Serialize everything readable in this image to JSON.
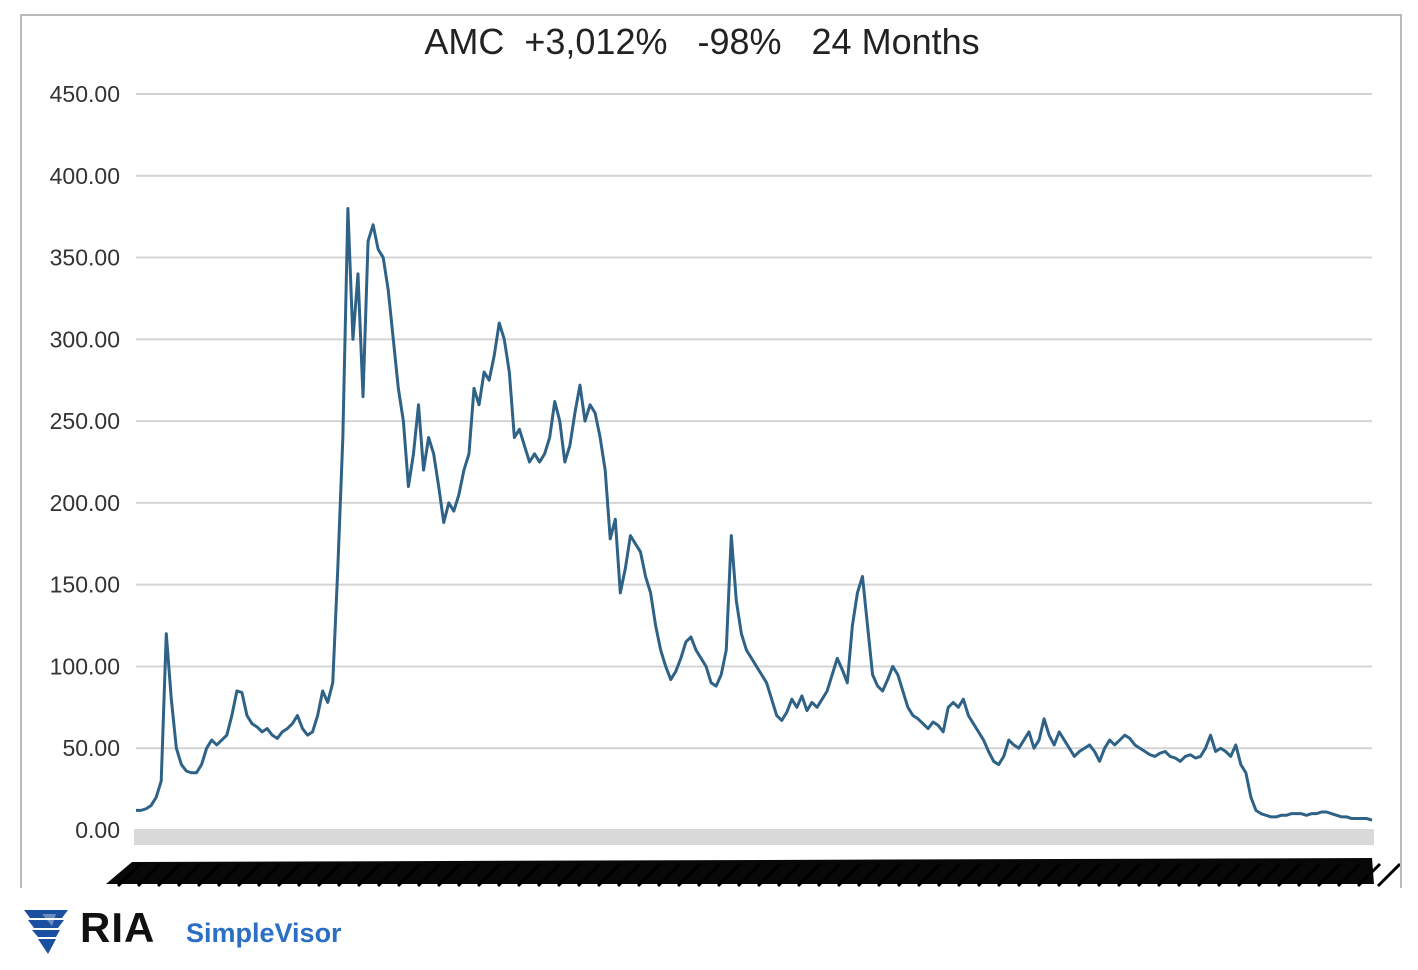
{
  "chart_data": {
    "type": "line",
    "title": "AMC  +3,012%   -98%   24 Months",
    "xlabel": "",
    "ylabel": "",
    "ylim": [
      0,
      450
    ],
    "y_ticks": [
      "0.00",
      "50.00",
      "100.00",
      "150.00",
      "200.00",
      "250.00",
      "300.00",
      "350.00",
      "400.00",
      "450.00"
    ],
    "grid": true,
    "legend": "none",
    "x_tick_labels_legible": false,
    "series": [
      {
        "color": "#2e6286",
        "values": [
          12,
          12,
          13,
          15,
          20,
          30,
          120,
          80,
          50,
          40,
          36,
          35,
          35,
          40,
          50,
          55,
          52,
          55,
          58,
          70,
          85,
          84,
          70,
          65,
          63,
          60,
          62,
          58,
          56,
          60,
          62,
          65,
          70,
          62,
          58,
          60,
          70,
          85,
          78,
          90,
          160,
          240,
          380,
          300,
          340,
          265,
          360,
          370,
          355,
          350,
          330,
          300,
          270,
          250,
          210,
          230,
          260,
          220,
          240,
          230,
          210,
          188,
          200,
          195,
          205,
          220,
          230,
          270,
          260,
          280,
          275,
          290,
          310,
          300,
          280,
          240,
          245,
          235,
          225,
          230,
          225,
          230,
          240,
          262,
          250,
          225,
          235,
          255,
          272,
          250,
          260,
          255,
          240,
          220,
          178,
          190,
          145,
          160,
          180,
          175,
          170,
          155,
          145,
          125,
          110,
          100,
          92,
          97,
          105,
          115,
          118,
          110,
          105,
          100,
          90,
          88,
          95,
          110,
          180,
          140,
          120,
          110,
          105,
          100,
          95,
          90,
          80,
          70,
          67,
          72,
          80,
          75,
          82,
          73,
          78,
          75,
          80,
          85,
          95,
          105,
          98,
          90,
          125,
          145,
          155,
          125,
          95,
          88,
          85,
          92,
          100,
          95,
          85,
          75,
          70,
          68,
          65,
          62,
          66,
          64,
          60,
          75,
          78,
          75,
          80,
          70,
          65,
          60,
          55,
          48,
          42,
          40,
          45,
          55,
          52,
          50,
          55,
          60,
          50,
          55,
          68,
          58,
          52,
          60,
          55,
          50,
          45,
          48,
          50,
          52,
          48,
          42,
          50,
          55,
          52,
          55,
          58,
          56,
          52,
          50,
          48,
          46,
          45,
          47,
          48,
          45,
          44,
          42,
          45,
          46,
          44,
          45,
          50,
          58,
          48,
          50,
          48,
          45,
          52,
          40,
          35,
          20,
          12,
          10,
          9,
          8,
          8,
          9,
          9,
          10,
          10,
          10,
          9,
          10,
          10,
          11,
          11,
          10,
          9,
          8,
          8,
          7,
          7,
          7,
          7,
          6
        ]
      }
    ]
  },
  "brand": {
    "ria_text": "RIA",
    "simplevisor_text": "SimpleVisor"
  },
  "colors": {
    "line": "#2e6286",
    "grid": "#d4d4d4",
    "axis_band": "#d9d9d9",
    "brand_blue": "#2a6fc4"
  }
}
